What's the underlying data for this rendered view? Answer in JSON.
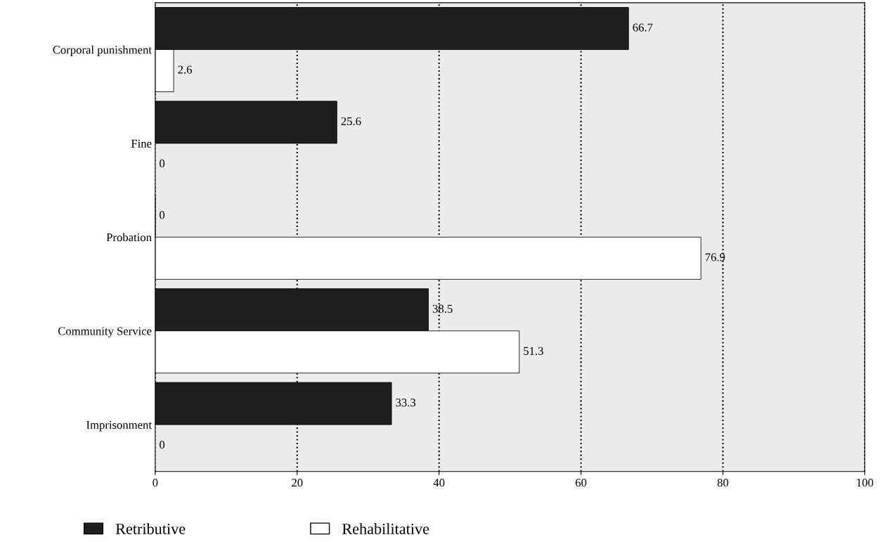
{
  "chart_data": {
    "type": "bar",
    "orientation": "horizontal",
    "categories": [
      "Corporal punishment",
      "Fine",
      "Probation",
      "Community Service",
      "Imprisonment"
    ],
    "series": [
      {
        "name": "Retributive",
        "color": "#1e1e1e",
        "values": [
          66.7,
          25.6,
          0,
          38.5,
          33.3
        ]
      },
      {
        "name": "Rehabilitative",
        "color": "#ffffff",
        "values": [
          2.6,
          0,
          76.9,
          51.3,
          0
        ]
      }
    ],
    "xlim": [
      0,
      100
    ],
    "xticks": [
      0,
      20,
      40,
      60,
      80,
      100
    ],
    "grid": "x",
    "legend": "bottom",
    "data_labels": true
  }
}
